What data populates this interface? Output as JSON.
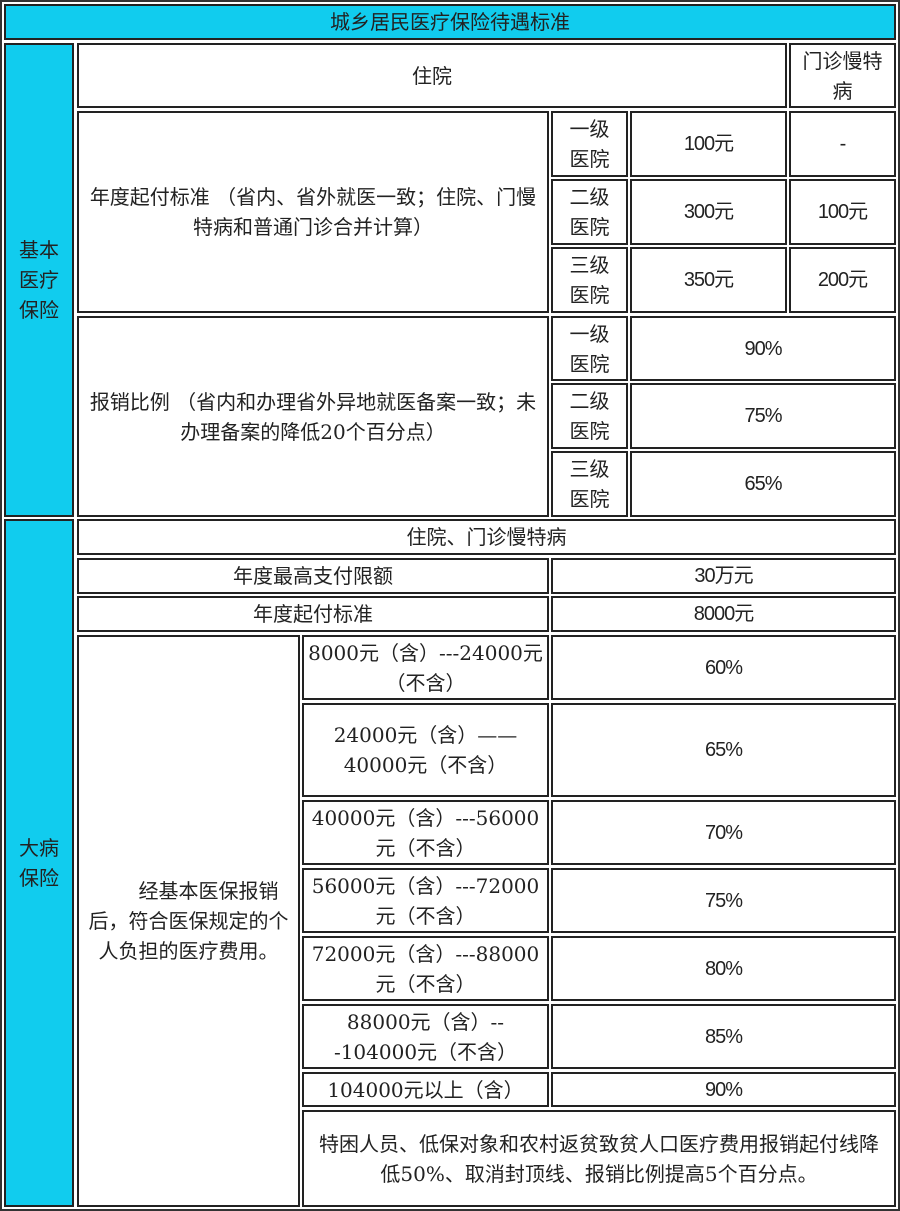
{
  "title": "城乡居民医疗保险待遇标准",
  "basic": {
    "label": "基本医疗保险",
    "hospital_header": "住院",
    "outpatient_header": "门诊慢特病",
    "deductible_label": "年度起付标准 （省内、省外就医一致；住院、门慢特病和普通门诊合并计算）",
    "deductible_rows": [
      {
        "level": "一级医院",
        "hospital": "100元",
        "outpatient": "-"
      },
      {
        "level": "二级医院",
        "hospital": "300元",
        "outpatient": "100元"
      },
      {
        "level": "三级医院",
        "hospital": "350元",
        "outpatient": "200元"
      }
    ],
    "ratio_label": "报销比例 （省内和办理省外异地就医备案一致；未办理备案的降低20个百分点）",
    "ratio_rows": [
      {
        "level": "一级医院",
        "value": "90%"
      },
      {
        "level": "二级医院",
        "value": "75%"
      },
      {
        "level": "三级医院",
        "value": "65%"
      }
    ]
  },
  "serious": {
    "label": "大病保险",
    "header": "住院、门诊慢特病",
    "max_label": "年度最高支付限额",
    "max_value": "30万元",
    "deductible_label": "年度起付标准",
    "deductible_value": "8000元",
    "scope_label": "　　经基本医保报销后，符合医保规定的个人负担的医疗费用。",
    "bands": [
      {
        "range": "8000元（含）---24000元（不含）",
        "ratio": "60%"
      },
      {
        "range": "24000元（含）——40000元（不含）",
        "ratio": "65%"
      },
      {
        "range": "40000元（含）---56000元（不含）",
        "ratio": "70%"
      },
      {
        "range": "56000元（含）---72000元（不含）",
        "ratio": "75%"
      },
      {
        "range": "72000元（含）---88000元（不含）",
        "ratio": "80%"
      },
      {
        "range": "88000元（含）---104000元（不含）",
        "ratio": "85%"
      },
      {
        "range": "104000元以上（含）",
        "ratio": "90%"
      }
    ],
    "note": "特困人员、低保对象和农村返贫致贫人口医疗费用报销起付线降低50%、取消封顶线、报销比例提高5个百分点。"
  },
  "colors": {
    "header_bg": "#11ccee",
    "border": "#222222"
  }
}
